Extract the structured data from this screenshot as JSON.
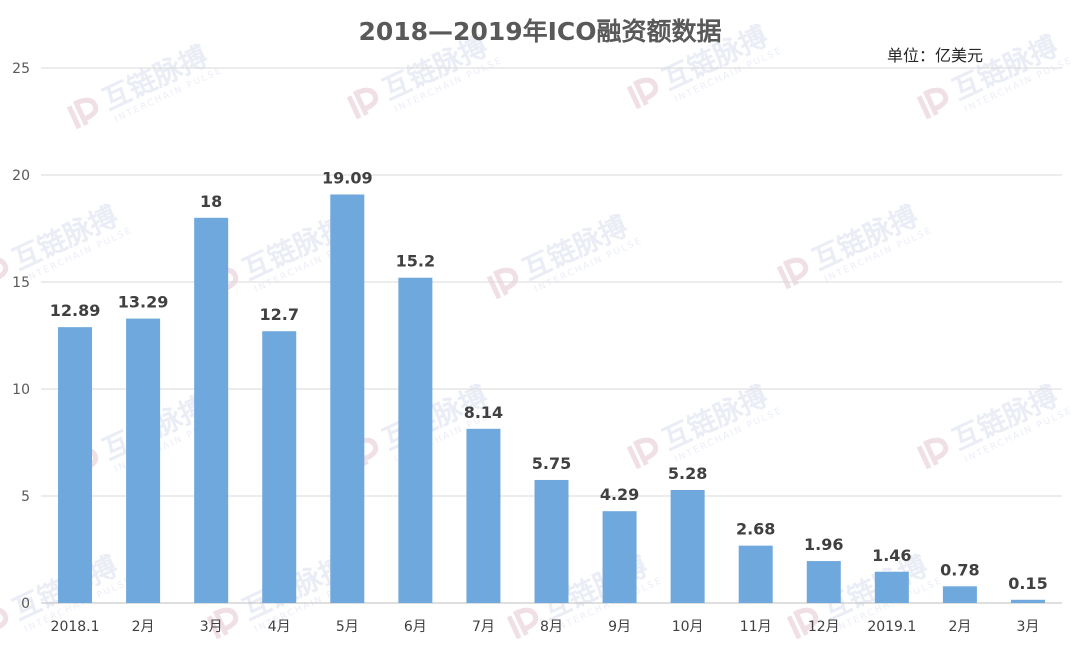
{
  "watermark": {
    "text": "互链脉搏",
    "subtext": "INTERCHAIN PULSE"
  },
  "chart_data": {
    "type": "bar",
    "title": "2018—2019年ICO融资额数据",
    "unit": "单位：亿美元",
    "categories": [
      "2018.1",
      "2月",
      "3月",
      "4月",
      "5月",
      "6月",
      "7月",
      "8月",
      "9月",
      "10月",
      "11月",
      "12月",
      "2019.1",
      "2月",
      "3月"
    ],
    "values": [
      12.89,
      13.29,
      18,
      12.7,
      19.09,
      15.2,
      8.14,
      5.75,
      4.29,
      5.28,
      2.68,
      1.96,
      1.46,
      0.78,
      0.15
    ],
    "value_labels": [
      "12.89",
      "13.29",
      "18",
      "12.7",
      "19.09",
      "15.2",
      "8.14",
      "5.75",
      "4.29",
      "5.28",
      "2.68",
      "1.96",
      "1.46",
      "0.78",
      "0.15"
    ],
    "ylim": [
      0,
      25
    ],
    "yticks": [
      "0",
      "5",
      "10",
      "15",
      "20",
      "25"
    ],
    "ytick_values": [
      0,
      5,
      10,
      15,
      20,
      25
    ],
    "grid": true,
    "legend": "none",
    "bar_color": "#6fa8dc",
    "grid_color": "#d9d9d9",
    "label_color": "#404040"
  }
}
